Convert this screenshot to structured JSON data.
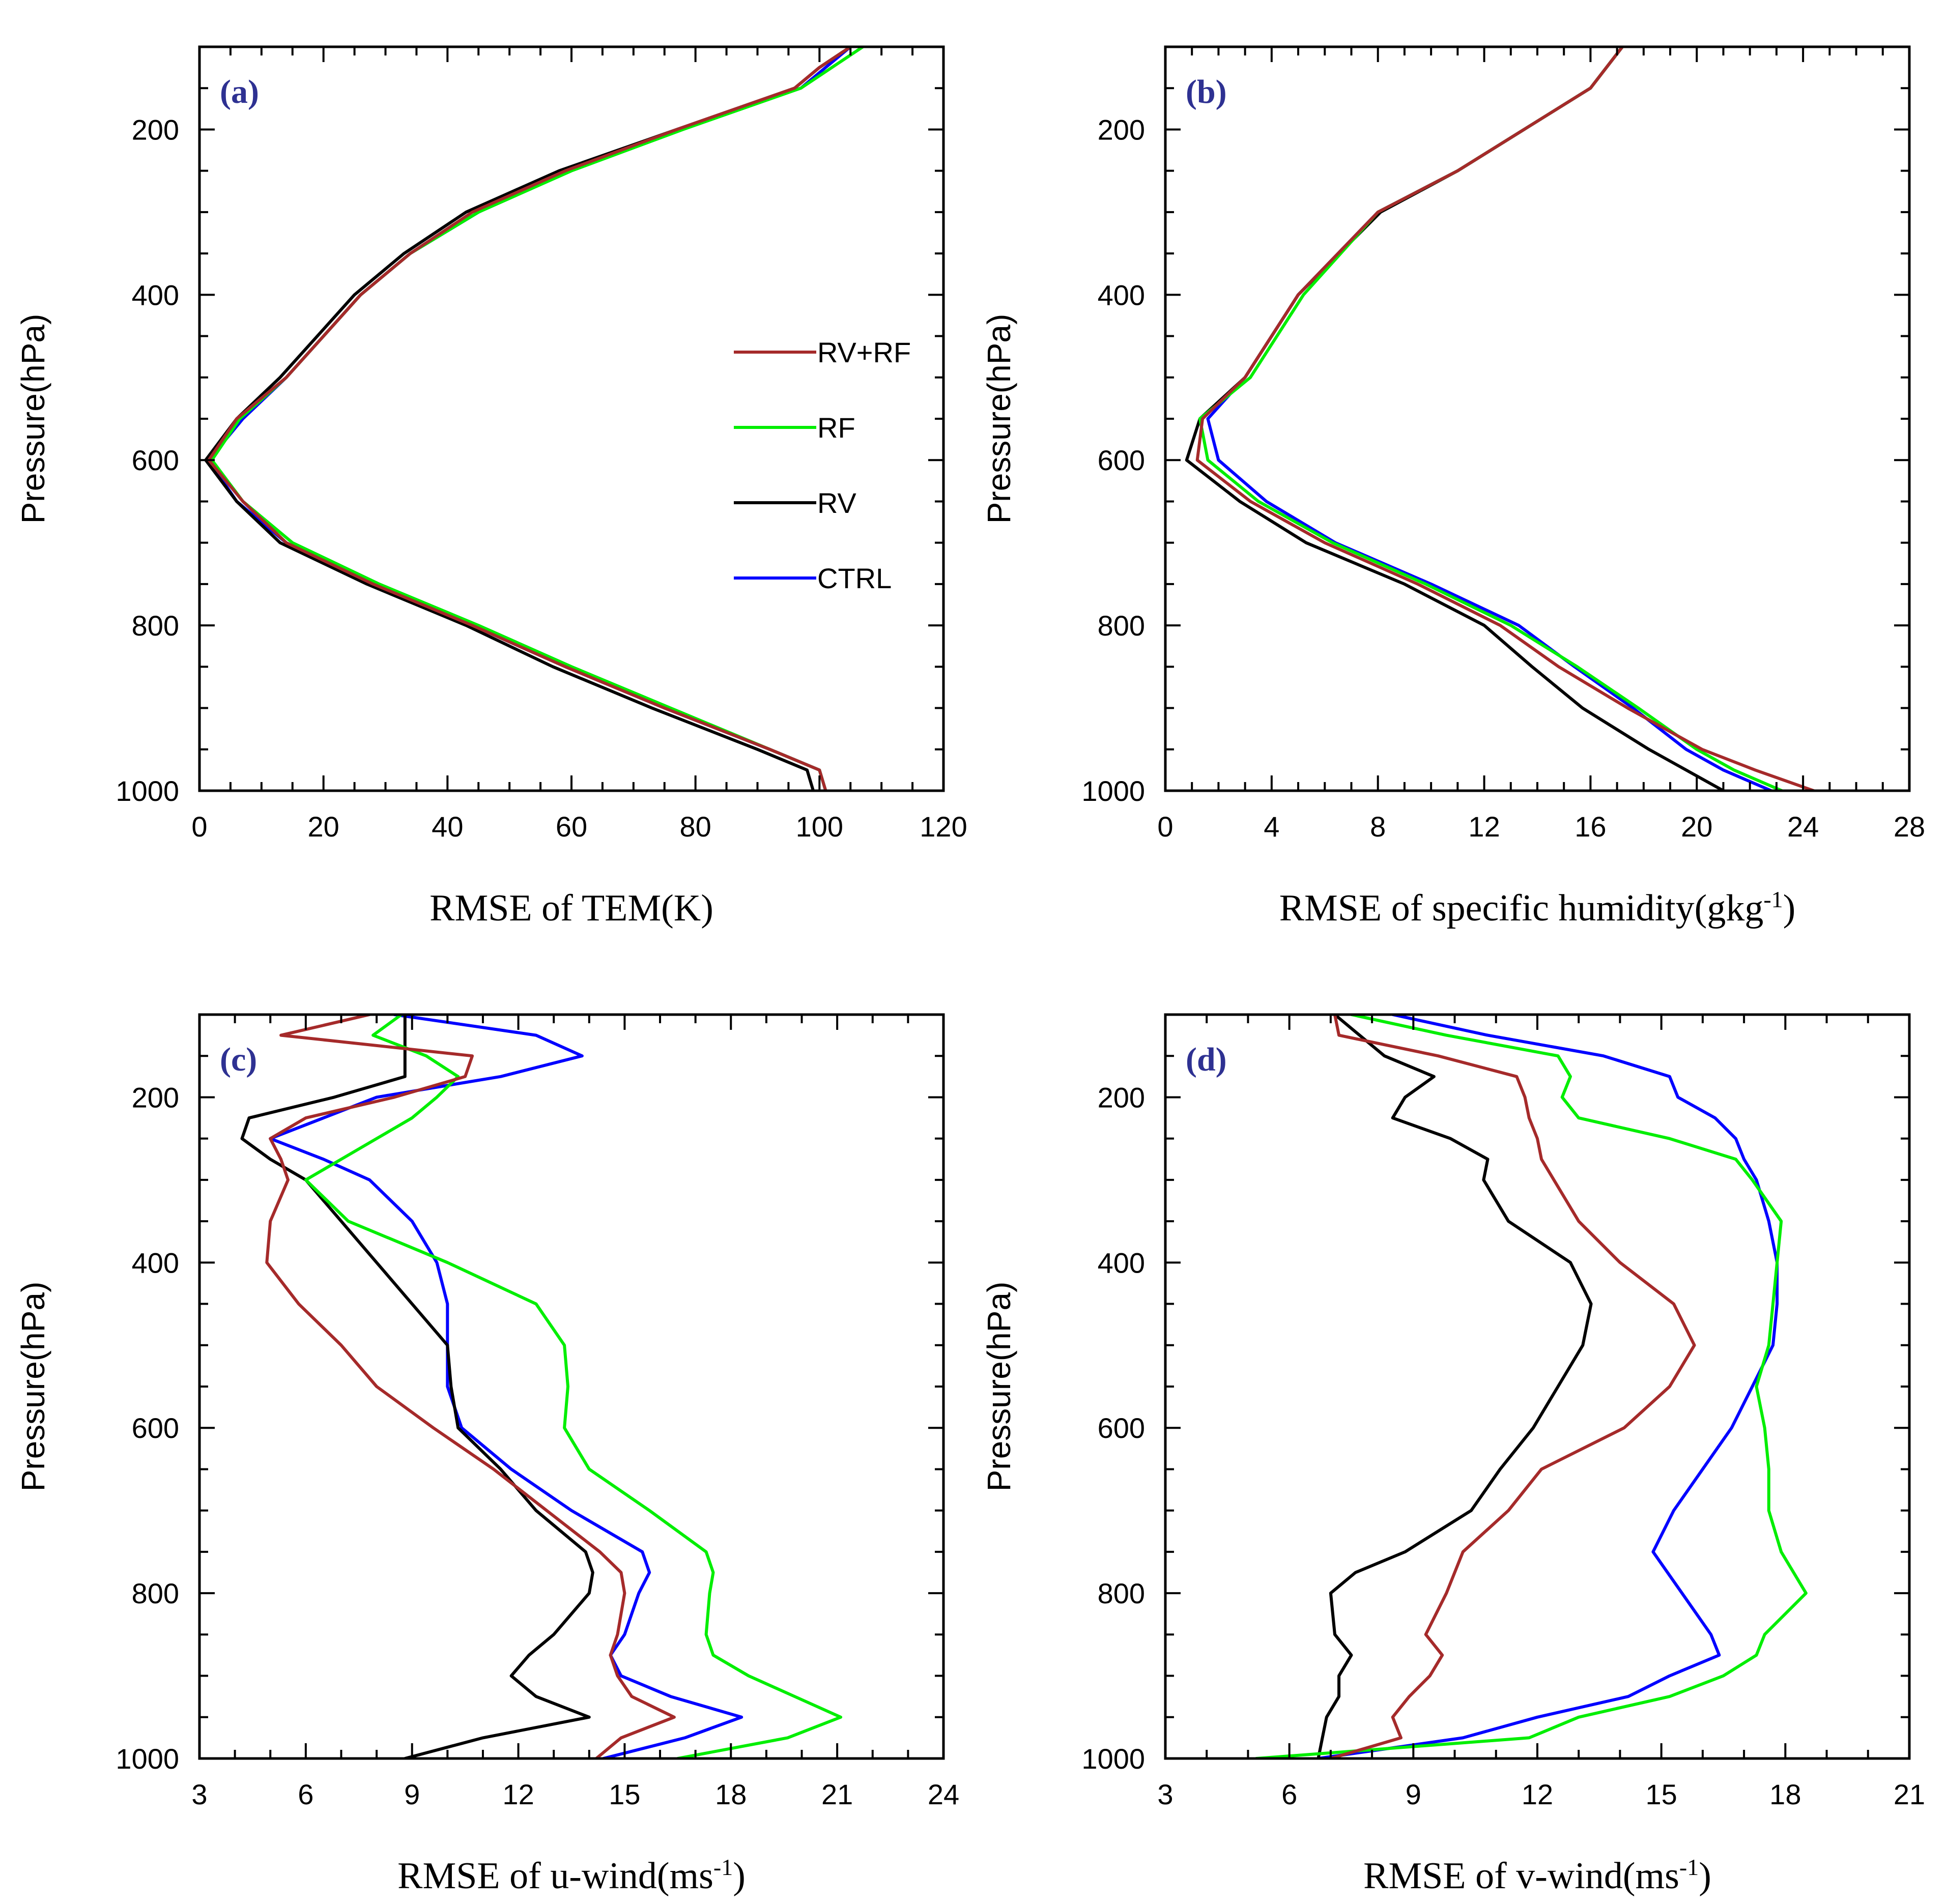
{
  "chart_data": [
    {
      "id": "a",
      "type": "line",
      "panel_label": "(a)",
      "xlabel": "RMSE of TEM(K)",
      "ylabel": "Pressure(hPa)",
      "xlim": [
        0,
        120
      ],
      "xticks": [
        0,
        20,
        40,
        60,
        80,
        100,
        120
      ],
      "xminor": 5,
      "ylim": [
        1000,
        100
      ],
      "yticks": [
        200,
        400,
        600,
        800,
        1000
      ],
      "yminor": 50,
      "legend": {
        "placement": "center-right",
        "entries": [
          "RV+RF",
          "RF",
          "RV",
          "CTRL"
        ]
      },
      "series": [
        {
          "name": "CTRL",
          "color": "#0000ff",
          "pressure": [
            100,
            125,
            150,
            200,
            250,
            300,
            350,
            400,
            450,
            500,
            550,
            600,
            650,
            700,
            750,
            800,
            850,
            900,
            950,
            975,
            1000
          ],
          "values": [
            105,
            101,
            97,
            77,
            59,
            45,
            34,
            26,
            20,
            14,
            7,
            1.5,
            6,
            14,
            28,
            44,
            59,
            75,
            92,
            100,
            101
          ]
        },
        {
          "name": "RV",
          "color": "#000000",
          "pressure": [
            100,
            125,
            150,
            200,
            250,
            300,
            350,
            400,
            450,
            500,
            550,
            600,
            650,
            700,
            750,
            800,
            850,
            900,
            950,
            975,
            1000
          ],
          "values": [
            105,
            100,
            96,
            77,
            58,
            43,
            33,
            25,
            19,
            13,
            6,
            1,
            6,
            13,
            27,
            43,
            57,
            73,
            90,
            98,
            99
          ]
        },
        {
          "name": "RF",
          "color": "#00ee00",
          "pressure": [
            100,
            125,
            150,
            200,
            250,
            300,
            350,
            400,
            450,
            500,
            550,
            600,
            650,
            700,
            750,
            800,
            850,
            900,
            950,
            975,
            1000
          ],
          "values": [
            107,
            102,
            97,
            78,
            60,
            45,
            34,
            26,
            20,
            14,
            6.5,
            2,
            7,
            15,
            29,
            45,
            60,
            76,
            92,
            100,
            101
          ]
        },
        {
          "name": "RV+RF",
          "color": "#a52a2a",
          "pressure": [
            100,
            125,
            150,
            200,
            250,
            300,
            350,
            400,
            450,
            500,
            550,
            600,
            650,
            700,
            750,
            800,
            850,
            900,
            950,
            975,
            1000
          ],
          "values": [
            105,
            100,
            96,
            77,
            59,
            44,
            34,
            26,
            20,
            14,
            6,
            1.5,
            7,
            14,
            28,
            44,
            59,
            75,
            92,
            100,
            101
          ]
        }
      ]
    },
    {
      "id": "b",
      "type": "line",
      "panel_label": "(b)",
      "xlabel": "RMSE of specific humidity(gkg",
      "xlabel_sup": "-1",
      "xlabel_tail": ")",
      "ylabel": "Pressure(hPa)",
      "xlim": [
        0,
        28
      ],
      "xticks": [
        0,
        4,
        8,
        12,
        16,
        20,
        24,
        28
      ],
      "xminor": 1,
      "ylim": [
        1000,
        100
      ],
      "yticks": [
        200,
        400,
        600,
        800,
        1000
      ],
      "yminor": 50,
      "series": [
        {
          "name": "CTRL",
          "color": "#0000ff",
          "pressure": [
            100,
            150,
            200,
            250,
            300,
            400,
            500,
            550,
            600,
            650,
            700,
            750,
            800,
            850,
            900,
            950,
            975,
            1000
          ],
          "values": [
            17.2,
            16,
            13.5,
            11,
            8,
            5,
            3,
            1.6,
            2,
            3.8,
            6.4,
            10,
            13.3,
            15.4,
            17.6,
            19.6,
            21,
            22.8
          ]
        },
        {
          "name": "RV",
          "color": "#000000",
          "pressure": [
            100,
            150,
            200,
            250,
            300,
            400,
            500,
            550,
            600,
            650,
            700,
            750,
            800,
            850,
            900,
            950,
            975,
            1000
          ],
          "values": [
            17.2,
            16,
            13.5,
            11,
            8.1,
            5,
            3,
            1.3,
            0.8,
            2.8,
            5.3,
            9,
            12,
            13.8,
            15.7,
            18.2,
            19.6,
            21
          ]
        },
        {
          "name": "RF",
          "color": "#00ee00",
          "pressure": [
            100,
            150,
            200,
            250,
            300,
            400,
            500,
            550,
            600,
            650,
            700,
            750,
            800,
            850,
            900,
            950,
            975,
            1000
          ],
          "values": [
            17.2,
            16,
            13.5,
            11,
            8,
            5.2,
            3.2,
            1.3,
            1.6,
            3.5,
            6.3,
            9.8,
            13,
            15.5,
            17.8,
            20,
            21.4,
            23.2
          ]
        },
        {
          "name": "RV+RF",
          "color": "#a52a2a",
          "pressure": [
            100,
            150,
            200,
            250,
            300,
            400,
            500,
            550,
            600,
            650,
            700,
            750,
            800,
            850,
            900,
            950,
            975,
            1000
          ],
          "values": [
            17.2,
            16,
            13.5,
            11,
            8,
            5,
            3,
            1.4,
            1.2,
            3.2,
            6,
            9.5,
            12.6,
            14.8,
            17.4,
            20.2,
            22.2,
            24.4
          ]
        }
      ]
    },
    {
      "id": "c",
      "type": "line",
      "panel_label": "(c)",
      "xlabel": "RMSE of u-wind(ms",
      "xlabel_sup": "-1",
      "xlabel_tail": ")",
      "ylabel": "Pressure(hPa)",
      "xlim": [
        3,
        24
      ],
      "xticks": [
        3,
        6,
        9,
        12,
        15,
        18,
        21,
        24
      ],
      "xminor": 1,
      "ylim": [
        1000,
        100
      ],
      "yticks": [
        200,
        400,
        600,
        800,
        1000
      ],
      "yminor": 50,
      "series": [
        {
          "name": "CTRL",
          "color": "#0000ff",
          "pressure": [
            100,
            125,
            150,
            175,
            200,
            225,
            250,
            275,
            300,
            350,
            400,
            450,
            500,
            550,
            600,
            650,
            700,
            750,
            775,
            800,
            850,
            875,
            900,
            925,
            950,
            975,
            1000
          ],
          "values": [
            8.5,
            12.5,
            13.8,
            11.5,
            8,
            6.5,
            5,
            6.5,
            7.8,
            9,
            9.7,
            10,
            10,
            10,
            10.4,
            11.8,
            13.5,
            15.5,
            15.7,
            15.4,
            15,
            14.6,
            14.9,
            16.3,
            18.3,
            16.7,
            14.4
          ]
        },
        {
          "name": "RV",
          "color": "#000000",
          "pressure": [
            100,
            125,
            150,
            175,
            200,
            225,
            250,
            275,
            300,
            350,
            400,
            450,
            500,
            550,
            600,
            650,
            700,
            750,
            775,
            800,
            850,
            875,
            900,
            925,
            950,
            975,
            1000
          ],
          "values": [
            8.8,
            8.8,
            8.8,
            8.8,
            6.8,
            4.4,
            4.2,
            5,
            6,
            7,
            8,
            9,
            10,
            10.1,
            10.3,
            11.5,
            12.5,
            13.9,
            14.1,
            14,
            13,
            12.3,
            11.8,
            12.5,
            14,
            11,
            8.8
          ]
        },
        {
          "name": "RF",
          "color": "#00ee00",
          "pressure": [
            100,
            125,
            150,
            175,
            200,
            225,
            250,
            275,
            300,
            350,
            400,
            450,
            500,
            550,
            600,
            650,
            700,
            750,
            775,
            800,
            850,
            875,
            900,
            925,
            950,
            975,
            1000
          ],
          "values": [
            8.7,
            7.9,
            9.4,
            10.3,
            9.7,
            9,
            8,
            7,
            6,
            7.2,
            10,
            12.5,
            13.3,
            13.4,
            13.3,
            14,
            15.7,
            17.3,
            17.5,
            17.4,
            17.3,
            17.5,
            18.5,
            19.8,
            21.1,
            19.6,
            16.5
          ]
        },
        {
          "name": "RV+RF",
          "color": "#a52a2a",
          "pressure": [
            100,
            125,
            150,
            175,
            200,
            225,
            250,
            275,
            300,
            350,
            400,
            450,
            500,
            550,
            600,
            650,
            700,
            750,
            775,
            800,
            850,
            875,
            900,
            925,
            950,
            975,
            1000
          ],
          "values": [
            7.8,
            5.3,
            10.7,
            10.5,
            8.5,
            6,
            5,
            5.3,
            5.5,
            5,
            4.9,
            5.8,
            7,
            8,
            9.6,
            11.3,
            12.8,
            14.3,
            14.9,
            15,
            14.8,
            14.6,
            14.8,
            15.2,
            16.4,
            14.9,
            14.2
          ]
        }
      ]
    },
    {
      "id": "d",
      "type": "line",
      "panel_label": "(d)",
      "xlabel": "RMSE of v-wind(ms",
      "xlabel_sup": "-1",
      "xlabel_tail": ")",
      "ylabel": "Pressure(hPa)",
      "xlim": [
        3,
        21
      ],
      "xticks": [
        3,
        6,
        9,
        12,
        15,
        18,
        21
      ],
      "xminor": 1,
      "ylim": [
        1000,
        100
      ],
      "yticks": [
        200,
        400,
        600,
        800,
        1000
      ],
      "yminor": 50,
      "series": [
        {
          "name": "CTRL",
          "color": "#0000ff",
          "pressure": [
            100,
            125,
            150,
            175,
            200,
            225,
            250,
            275,
            300,
            350,
            400,
            450,
            500,
            550,
            600,
            650,
            700,
            750,
            800,
            850,
            875,
            900,
            925,
            950,
            975,
            1000
          ],
          "values": [
            8.5,
            10.8,
            13.6,
            15.2,
            15.4,
            16.3,
            16.8,
            17,
            17.3,
            17.6,
            17.8,
            17.8,
            17.7,
            17.2,
            16.7,
            16,
            15.3,
            14.8,
            15.5,
            16.2,
            16.4,
            15.2,
            14.2,
            12,
            10.2,
            6.7
          ]
        },
        {
          "name": "RV",
          "color": "#000000",
          "pressure": [
            100,
            125,
            150,
            175,
            200,
            225,
            250,
            275,
            300,
            350,
            400,
            450,
            500,
            550,
            600,
            650,
            700,
            750,
            775,
            800,
            850,
            875,
            900,
            925,
            950,
            975,
            1000
          ],
          "values": [
            7.1,
            7.7,
            8.3,
            9.5,
            8.8,
            8.5,
            9.9,
            10.8,
            10.7,
            11.3,
            12.8,
            13.3,
            13.1,
            12.5,
            11.9,
            11.1,
            10.4,
            8.8,
            7.6,
            7,
            7.1,
            7.5,
            7.2,
            7.2,
            6.9,
            6.8,
            6.7
          ]
        },
        {
          "name": "RF",
          "color": "#00ee00",
          "pressure": [
            100,
            125,
            150,
            175,
            200,
            225,
            250,
            275,
            300,
            350,
            400,
            450,
            500,
            550,
            600,
            650,
            700,
            750,
            800,
            850,
            875,
            900,
            925,
            950,
            975,
            1000
          ],
          "values": [
            7.5,
            9.8,
            12.5,
            12.8,
            12.6,
            13,
            15.2,
            16.8,
            17.2,
            17.9,
            17.8,
            17.7,
            17.6,
            17.3,
            17.5,
            17.6,
            17.6,
            17.9,
            18.5,
            17.5,
            17.3,
            16.5,
            15.2,
            13,
            11.8,
            5.2
          ]
        },
        {
          "name": "RV+RF",
          "color": "#a52a2a",
          "pressure": [
            100,
            125,
            150,
            175,
            200,
            225,
            250,
            275,
            300,
            350,
            400,
            450,
            500,
            550,
            600,
            650,
            700,
            750,
            800,
            850,
            875,
            900,
            925,
            950,
            975,
            1000
          ],
          "values": [
            7.1,
            7.2,
            9.6,
            11.5,
            11.7,
            11.8,
            12,
            12.1,
            12.4,
            13,
            14,
            15.3,
            15.8,
            15.2,
            14.1,
            12.1,
            11.3,
            10.2,
            9.8,
            9.3,
            9.7,
            9.4,
            8.9,
            8.5,
            8.7,
            7
          ]
        }
      ]
    }
  ]
}
